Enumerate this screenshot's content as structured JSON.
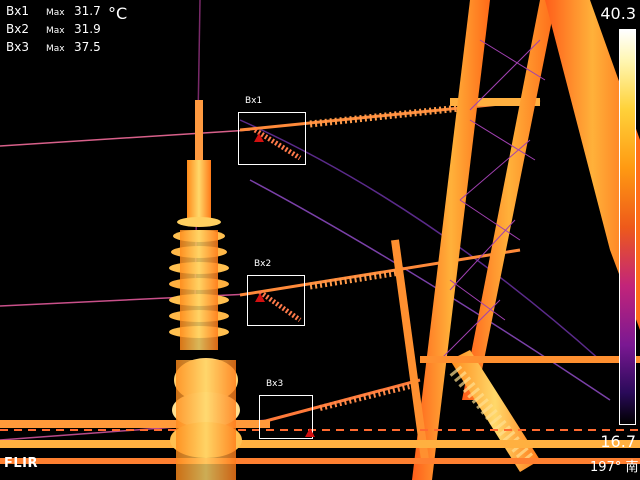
{
  "measurements": [
    {
      "label": "Bx1",
      "kind": "Max",
      "value": "31.7"
    },
    {
      "label": "Bx2",
      "kind": "Max",
      "value": "31.9"
    },
    {
      "label": "Bx3",
      "kind": "Max",
      "value": "37.5"
    }
  ],
  "unit": "°C",
  "boxes": [
    {
      "label": "Bx1"
    },
    {
      "label": "Bx2"
    },
    {
      "label": "Bx3"
    }
  ],
  "scale": {
    "max": "40.3",
    "min": "16.7"
  },
  "logo": "FLIR",
  "heading": "197° 南",
  "colors": {
    "hot": "#fff6b0",
    "warm": "#ff9a12",
    "mid": "#ee5a1a",
    "cool": "#7a1892",
    "background": "#000000",
    "hotspot_marker": "#d21010"
  }
}
